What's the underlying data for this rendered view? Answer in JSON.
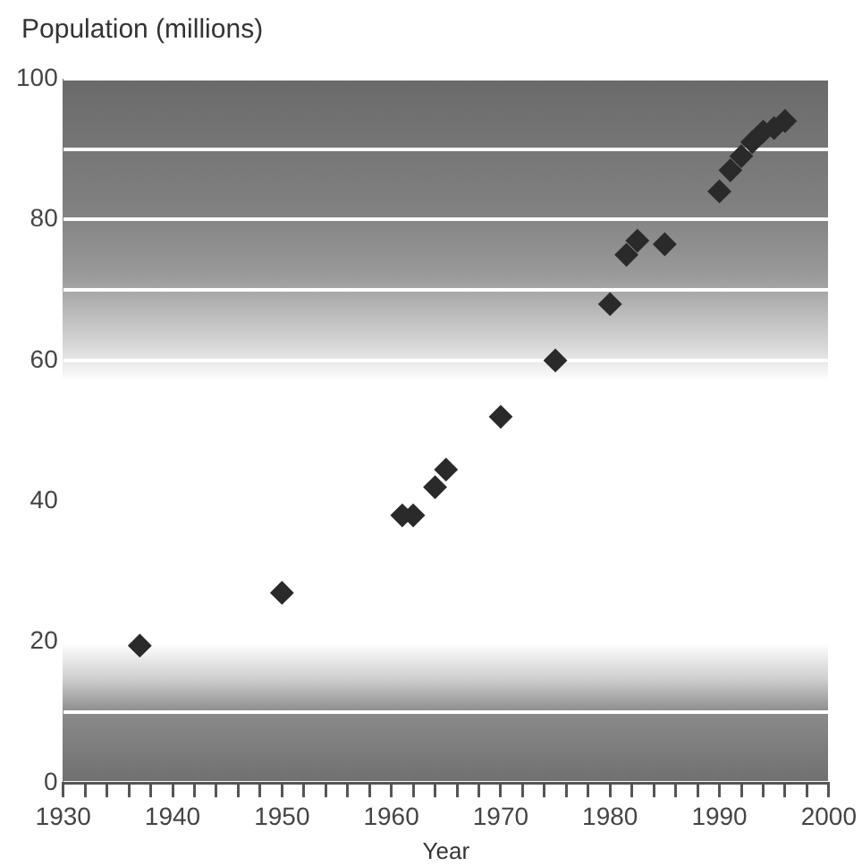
{
  "chart_data": {
    "type": "scatter",
    "xlabel": "Year",
    "ylabel": "Population (millions)",
    "x": [
      1937,
      1950,
      1961,
      1962,
      1964,
      1965,
      1970,
      1975,
      1980,
      1981.5,
      1982.5,
      1985,
      1990,
      1991,
      1992,
      1993,
      1994,
      1995,
      1996
    ],
    "values": [
      19.5,
      27,
      38,
      38,
      42,
      44.5,
      52,
      60,
      68,
      75,
      77,
      76.5,
      84,
      87,
      89,
      91,
      92.5,
      93,
      94
    ],
    "color": "#2a2a2a",
    "marker": "diamond",
    "grid": "y",
    "xlim": [
      1930,
      2000
    ],
    "xticks": [
      1930,
      {
        "value": 1932,
        "label": null
      },
      {
        "value": 1934,
        "label": null
      },
      {
        "value": 1936,
        "label": null
      },
      {
        "value": 1938,
        "label": null
      },
      1940,
      {
        "value": 1942,
        "label": null
      },
      {
        "value": 1944,
        "label": null
      },
      {
        "value": 1946,
        "label": null
      },
      {
        "value": 1948,
        "label": null
      },
      1950,
      {
        "value": 1952,
        "label": null
      },
      {
        "value": 1954,
        "label": null
      },
      {
        "value": 1956,
        "label": null
      },
      {
        "value": 1958,
        "label": null
      },
      1960,
      {
        "value": 1962,
        "label": null
      },
      {
        "value": 1964,
        "label": null
      },
      {
        "value": 1966,
        "label": null
      },
      {
        "value": 1968,
        "label": null
      },
      1970,
      {
        "value": 1972,
        "label": null
      },
      {
        "value": 1974,
        "label": null
      },
      {
        "value": 1976,
        "label": null
      },
      {
        "value": 1978,
        "label": null
      },
      1980,
      {
        "value": 1982,
        "label": null
      },
      {
        "value": 1984,
        "label": null
      },
      {
        "value": 1986,
        "label": null
      },
      {
        "value": 1988,
        "label": null
      },
      1990,
      {
        "value": 1992,
        "label": null
      },
      {
        "value": 1994,
        "label": null
      },
      {
        "value": 1996,
        "label": null
      },
      {
        "value": 1998,
        "label": null
      },
      2000
    ],
    "ylim": [
      0,
      100
    ],
    "yticks": [
      0,
      {
        "value": 10,
        "label": null
      },
      20,
      40,
      60,
      {
        "value": 70,
        "label": null
      },
      80,
      {
        "value": 90,
        "label": null
      },
      100
    ]
  }
}
